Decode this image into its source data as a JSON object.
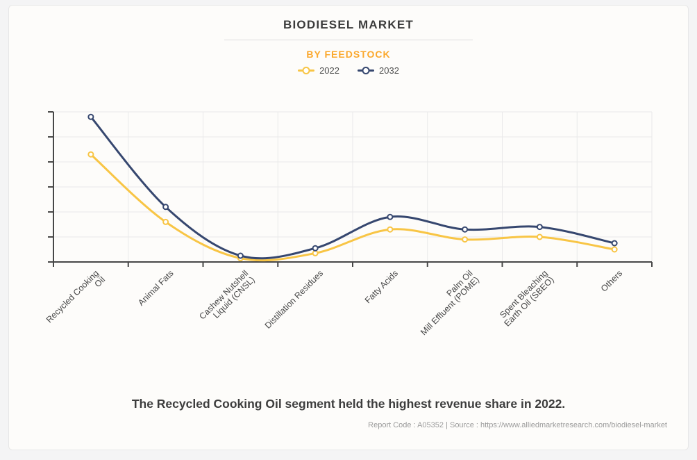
{
  "header": {
    "title": "BIODIESEL MARKET",
    "subtitle": "BY FEEDSTOCK"
  },
  "legend": [
    {
      "label": "2022",
      "color": "#F8C545"
    },
    {
      "label": "2032",
      "color": "#36476F"
    }
  ],
  "chart_data": {
    "type": "line",
    "title": "BIODIESEL MARKET",
    "subtitle": "BY FEEDSTOCK",
    "categories": [
      "Recycled Cooking\nOil",
      "Animal Fats",
      "Cashew Nutshell\nLiquid (CNSL)",
      "Distillation Residues",
      "Fatty Acids",
      "Palm Oil\nMill Effluent (POME)",
      "Spent Bleaching\nEarth Oil (SBEO)",
      "Others"
    ],
    "series": [
      {
        "name": "2022",
        "color": "#F8C545",
        "values": [
          4.3,
          1.6,
          0.15,
          0.35,
          1.3,
          0.9,
          1.0,
          0.5
        ]
      },
      {
        "name": "2032",
        "color": "#36476F",
        "values": [
          5.8,
          2.2,
          0.25,
          0.55,
          1.8,
          1.3,
          1.4,
          0.75
        ]
      }
    ],
    "xlabel": "",
    "ylabel": "",
    "ylim": [
      0,
      6
    ],
    "y_tick_count": 7,
    "y_tick_labels_visible": false,
    "grid": true,
    "smoothed": true,
    "legend_position": "top",
    "note": "Y axis has no numeric labels; values are relative units estimated from gridline spacing (1 unit per gridline)."
  },
  "footer": {
    "statement": "The Recycled Cooking Oil segment held the highest revenue share in 2022.",
    "source_line": "Report Code : A05352 | Source : https://www.alliedmarketresearch.com/biodiesel-market"
  },
  "colors": {
    "page_bg": "#F4F4F5",
    "card_bg": "#FDFCFA",
    "card_border": "#E7E7E7",
    "divider": "#DCDCDC",
    "title_text": "#3B3B3B",
    "subtitle_orange": "#FBA82C",
    "legend_text": "#4F4F4F",
    "axis": "#474747",
    "grid": "#E9E9E9",
    "axis_label_text": "#474747",
    "statement_text": "#3D3D3D",
    "source_text": "#9B9B9B",
    "marker_fill": "#FFFFFF"
  }
}
